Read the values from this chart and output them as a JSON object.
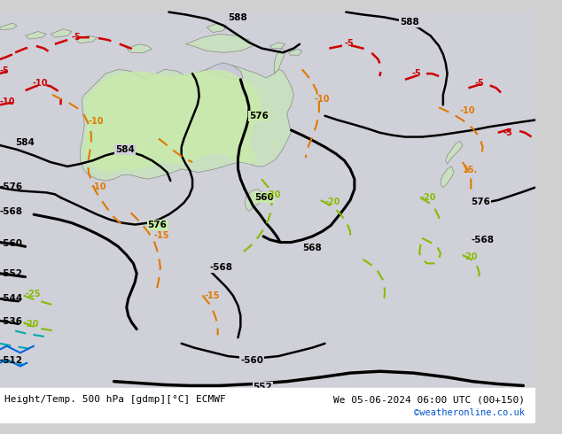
{
  "title_left": "Height/Temp. 500 hPa [gdmp][°C] ECMWF",
  "title_right": "We 05-06-2024 06:00 UTC (00+150)",
  "credit": "©weatheronline.co.uk",
  "bg_color": "#d8d8d8",
  "land_color": "#e8e8e8",
  "green_fill_color": "#b8e8a0",
  "bottom_strip_color": "#ffffff",
  "font_color_black": "#000000",
  "font_color_blue": "#0055cc",
  "font_color_red": "#cc0000",
  "font_color_orange": "#e07800",
  "font_color_green": "#66aa00",
  "font_color_cyan": "#00aaaa"
}
